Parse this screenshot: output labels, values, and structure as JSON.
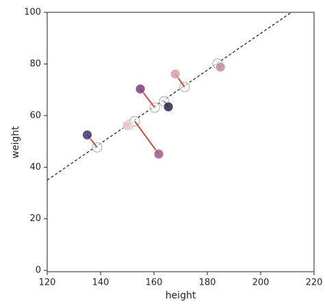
{
  "chart_data": {
    "type": "scatter",
    "xlabel": "height",
    "ylabel": "weight",
    "xlim": [
      120,
      220
    ],
    "ylim": [
      -0.5,
      100
    ],
    "xticks": [
      120,
      140,
      160,
      180,
      200,
      220
    ],
    "yticks": [
      0,
      20,
      40,
      60,
      80,
      100
    ],
    "x": [
      135,
      150,
      154.9,
      161.8,
      165.4,
      168,
      184.9
    ],
    "values": [
      52.5,
      56.2,
      70.3,
      45.1,
      63.4,
      76.1,
      78.8
    ],
    "colors": [
      "#3b3a6b",
      "#e6c4c2",
      "#7a3d7e",
      "#a05c88",
      "#2a2446",
      "#d9a0a0",
      "#c48aa2"
    ],
    "proj_x": [
      138.7,
      150.4,
      160.3,
      152.8,
      163.8,
      171.5,
      183.8
    ],
    "proj_values": [
      47.7,
      56.4,
      63.1,
      57.8,
      65.5,
      71.1,
      80.1
    ],
    "line": {
      "x": [
        120,
        211.5
      ],
      "values": [
        35,
        100
      ]
    },
    "segment_color": "#d24a3a"
  }
}
